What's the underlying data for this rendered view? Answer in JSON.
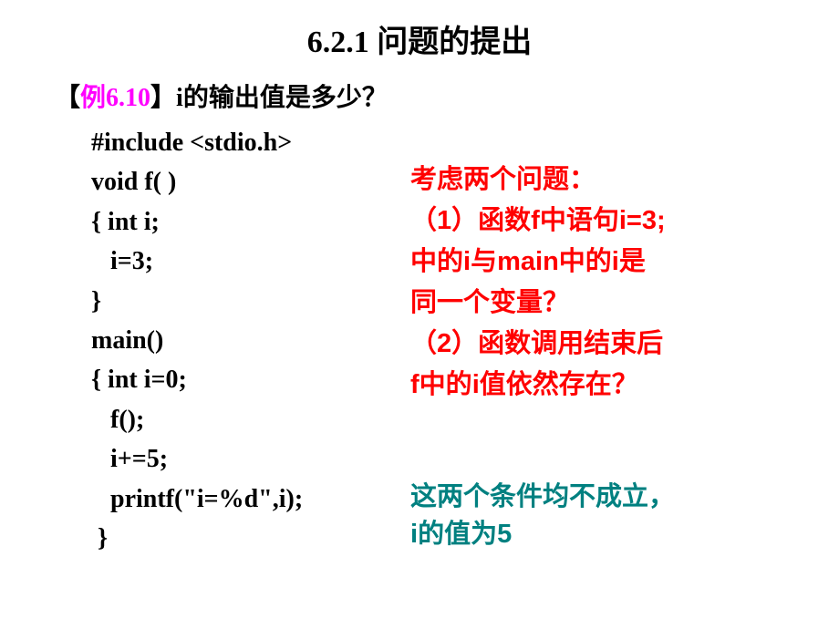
{
  "title": "6.2.1 问题的提出",
  "example": {
    "bracket_open": "【",
    "label": "例6.10",
    "bracket_close": "】",
    "question": "i的输出值是多少？"
  },
  "code": {
    "l1": "#include <stdio.h>",
    "l2": "void f( )",
    "l3": "{ int i;",
    "l4": "   i=3;",
    "l5": "}",
    "l6": "main()",
    "l7": "{ int i=0;",
    "l8": "   f();",
    "l9": "   i+=5;",
    "l10": "   printf(\"i=%d\",i);",
    "l11": " }"
  },
  "annotation_red": {
    "line1": "考虑两个问题：",
    "line2a": "（1）函数",
    "line2b": "f",
    "line2c": "中语句",
    "line2d": "i=3;",
    "line3a": "中的",
    "line3b": "i",
    "line3c": "与",
    "line3d": "main",
    "line3e": "中的",
    "line3f": "i",
    "line3g": "是",
    "line4": "同一个变量？",
    "line5": "（2）函数调用结束后",
    "line6a": "f",
    "line6b": "中的",
    "line6c": "i",
    "line6d": "值依然存在？"
  },
  "annotation_teal": {
    "line1": "这两个条件均不成立，",
    "line2a": "i",
    "line2b": "的值为",
    "line2c": "5"
  },
  "colors": {
    "title": "#000000",
    "example_num": "#ff00ff",
    "code": "#000000",
    "red_note": "#ff0000",
    "teal_note": "#008080",
    "background": "#ffffff"
  },
  "fonts": {
    "title_size": 34,
    "body_size": 28,
    "annotation_size": 29
  }
}
